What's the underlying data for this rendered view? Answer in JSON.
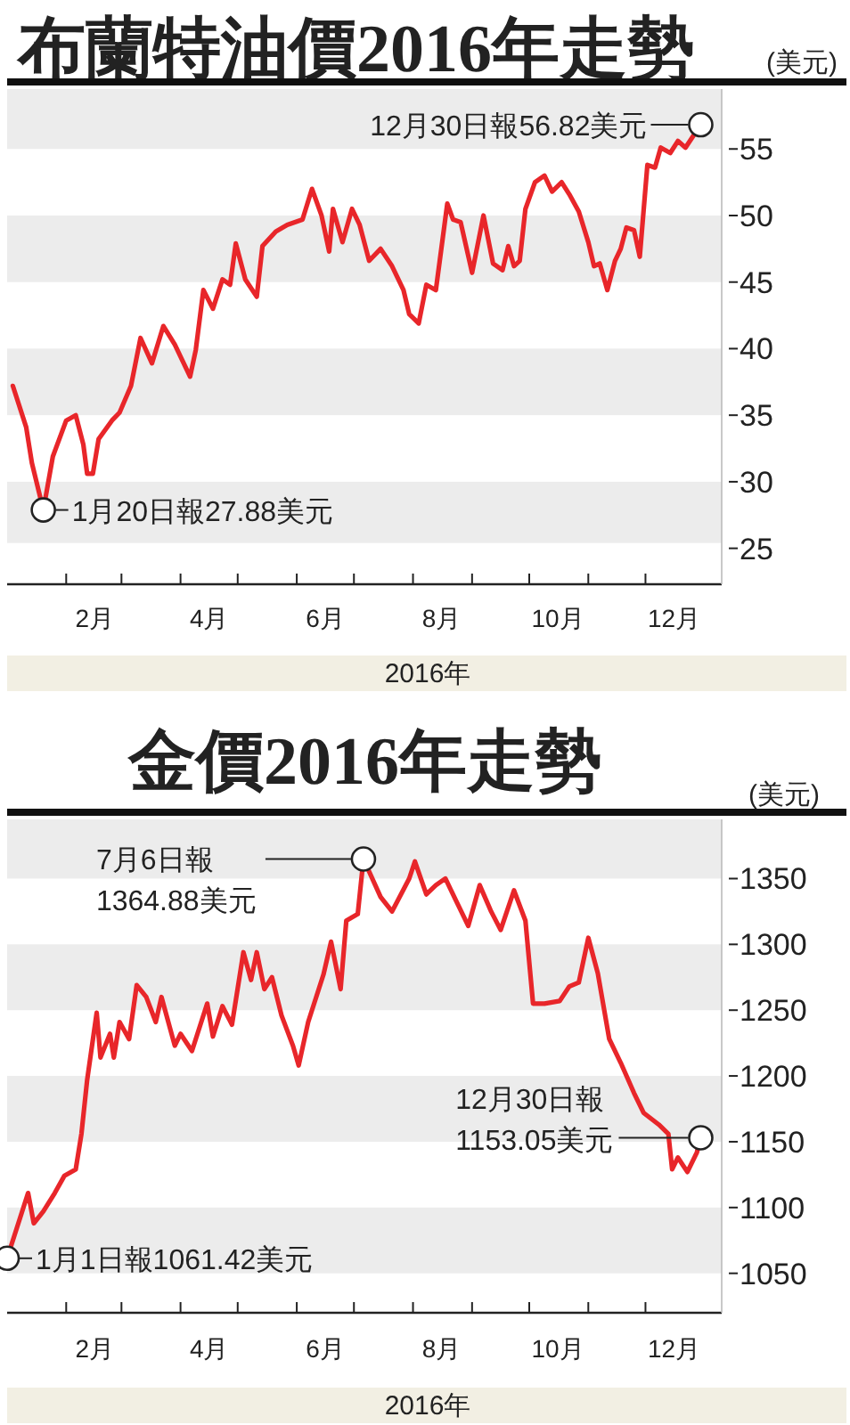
{
  "chart_data": [
    {
      "type": "line",
      "title": "布蘭特油價2016年走勢",
      "ylabel": "(美元)",
      "xlabel": "2016年",
      "color": "#e8262a",
      "marker": "none",
      "line_style": "solid",
      "x": [
        "2016-01-04",
        "2016-01-11",
        "2016-01-14",
        "2016-01-20",
        "2016-01-25",
        "2016-02-01",
        "2016-02-06",
        "2016-02-10",
        "2016-02-12",
        "2016-02-15",
        "2016-02-18",
        "2016-02-25",
        "2016-02-29",
        "2016-03-06",
        "2016-03-11",
        "2016-03-17",
        "2016-03-23",
        "2016-03-29",
        "2016-04-06",
        "2016-04-09",
        "2016-04-13",
        "2016-04-18",
        "2016-04-23",
        "2016-04-27",
        "2016-04-30",
        "2016-05-05",
        "2016-05-11",
        "2016-05-14",
        "2016-05-21",
        "2016-05-27",
        "2016-06-04",
        "2016-06-09",
        "2016-06-14",
        "2016-06-18",
        "2016-06-20",
        "2016-06-25",
        "2016-06-30",
        "2016-07-04",
        "2016-07-09",
        "2016-07-15",
        "2016-07-21",
        "2016-07-27",
        "2016-07-30",
        "2016-08-04",
        "2016-08-08",
        "2016-08-13",
        "2016-08-19",
        "2016-08-22",
        "2016-08-26",
        "2016-09-01",
        "2016-09-07",
        "2016-09-12",
        "2016-09-17",
        "2016-09-20",
        "2016-09-23",
        "2016-09-26",
        "2016-09-29",
        "2016-10-04",
        "2016-10-09",
        "2016-10-13",
        "2016-10-18",
        "2016-10-22",
        "2016-10-27",
        "2016-11-01",
        "2016-11-04",
        "2016-11-07",
        "2016-11-11",
        "2016-11-15",
        "2016-11-18",
        "2016-11-21",
        "2016-11-25",
        "2016-11-28",
        "2016-12-02",
        "2016-12-06",
        "2016-12-09",
        "2016-12-14",
        "2016-12-18",
        "2016-12-22",
        "2016-12-30"
      ],
      "values": [
        37.2,
        34.1,
        31.4,
        27.88,
        31.9,
        34.6,
        35.0,
        32.8,
        30.6,
        30.6,
        33.2,
        34.6,
        35.2,
        37.2,
        40.8,
        38.9,
        41.7,
        40.3,
        37.9,
        39.9,
        44.4,
        43.0,
        45.2,
        44.8,
        47.9,
        45.2,
        43.9,
        47.7,
        48.8,
        49.3,
        49.7,
        52.0,
        50.0,
        47.3,
        50.5,
        48.0,
        50.5,
        49.3,
        46.6,
        47.5,
        46.2,
        44.4,
        42.6,
        41.9,
        44.8,
        44.4,
        50.9,
        49.7,
        49.5,
        45.7,
        50.0,
        46.4,
        45.9,
        47.7,
        46.2,
        46.6,
        50.5,
        52.5,
        53.0,
        51.8,
        52.5,
        51.6,
        50.3,
        48.0,
        46.2,
        46.4,
        44.4,
        46.6,
        47.5,
        49.1,
        48.9,
        46.9,
        53.8,
        53.6,
        55.1,
        54.7,
        55.6,
        55.1,
        56.82
      ],
      "xlim": [
        "2016-01-01",
        "2017-01-10"
      ],
      "ylim": [
        22.3,
        59.5
      ],
      "yticks": [
        25,
        30,
        35,
        40,
        45,
        50,
        55
      ],
      "xticks": [
        {
          "value": "2016-02-01",
          "label": null
        },
        {
          "value": "2016-02-16",
          "label": "2月"
        },
        {
          "value": "2016-03-01",
          "label": null
        },
        {
          "value": "2016-04-01",
          "label": null
        },
        {
          "value": "2016-04-16",
          "label": "4月"
        },
        {
          "value": "2016-05-01",
          "label": null
        },
        {
          "value": "2016-06-01",
          "label": null
        },
        {
          "value": "2016-06-16",
          "label": "6月"
        },
        {
          "value": "2016-07-01",
          "label": null
        },
        {
          "value": "2016-08-01",
          "label": null
        },
        {
          "value": "2016-08-16",
          "label": "8月"
        },
        {
          "value": "2016-09-01",
          "label": null
        },
        {
          "value": "2016-10-01",
          "label": null
        },
        {
          "value": "2016-10-16",
          "label": "10月"
        },
        {
          "value": "2016-11-01",
          "label": null
        },
        {
          "value": "2016-12-01",
          "label": null
        },
        {
          "value": "2016-12-16",
          "label": "12月"
        }
      ],
      "bands": [
        {
          "axis": "y",
          "from": 25.4,
          "to": 30,
          "color": "#ececec"
        },
        {
          "axis": "y",
          "from": 35,
          "to": 40,
          "color": "#ececec"
        },
        {
          "axis": "y",
          "from": 45,
          "to": 50,
          "color": "#ececec"
        },
        {
          "axis": "y",
          "from": 55,
          "to": 59.5,
          "color": "#ececec"
        }
      ],
      "annotations": [
        {
          "text": "1月20日報27.88美元",
          "x": "2016-01-20",
          "y": 27.88
        },
        {
          "text": "12月30日報56.82美元",
          "x": "2016-12-30",
          "y": 56.82
        }
      ]
    },
    {
      "type": "line",
      "title": "金價2016年走勢",
      "ylabel": "(美元)",
      "xlabel": "2016年",
      "color": "#e8262a",
      "marker": "none",
      "line_style": "solid",
      "x": [
        "2016-01-01",
        "2016-01-12",
        "2016-01-15",
        "2016-01-20",
        "2016-01-26",
        "2016-01-31",
        "2016-02-06",
        "2016-02-09",
        "2016-02-12",
        "2016-02-17",
        "2016-02-19",
        "2016-02-24",
        "2016-02-26",
        "2016-02-29",
        "2016-03-05",
        "2016-03-09",
        "2016-03-14",
        "2016-03-19",
        "2016-03-22",
        "2016-03-29",
        "2016-04-01",
        "2016-04-07",
        "2016-04-15",
        "2016-04-18",
        "2016-04-23",
        "2016-04-28",
        "2016-05-04",
        "2016-05-08",
        "2016-05-11",
        "2016-05-15",
        "2016-05-19",
        "2016-05-24",
        "2016-05-30",
        "2016-06-02",
        "2016-06-07",
        "2016-06-15",
        "2016-06-19",
        "2016-06-24",
        "2016-06-27",
        "2016-07-03",
        "2016-07-06",
        "2016-07-15",
        "2016-07-21",
        "2016-07-30",
        "2016-08-02",
        "2016-08-08",
        "2016-08-13",
        "2016-08-18",
        "2016-08-24",
        "2016-08-30",
        "2016-09-05",
        "2016-09-11",
        "2016-09-16",
        "2016-09-23",
        "2016-09-29",
        "2016-10-03",
        "2016-10-09",
        "2016-10-17",
        "2016-10-22",
        "2016-10-27",
        "2016-11-01",
        "2016-11-06",
        "2016-11-12",
        "2016-11-18",
        "2016-11-25",
        "2016-11-30",
        "2016-12-08",
        "2016-12-13",
        "2016-12-15",
        "2016-12-18",
        "2016-12-23",
        "2016-12-28",
        "2016-12-30"
      ],
      "values": [
        1061.42,
        1111,
        1088,
        1097,
        1111,
        1124,
        1129,
        1156,
        1197,
        1248,
        1214,
        1232,
        1214,
        1241,
        1228,
        1269,
        1260,
        1241,
        1260,
        1223,
        1232,
        1219,
        1255,
        1230,
        1253,
        1239,
        1294,
        1273,
        1294,
        1266,
        1275,
        1246,
        1223,
        1208,
        1241,
        1277,
        1302,
        1266,
        1318,
        1323,
        1364.88,
        1336,
        1325,
        1350,
        1363,
        1338,
        1345,
        1350,
        1332,
        1314,
        1345,
        1325,
        1311,
        1341,
        1318,
        1255,
        1255,
        1257,
        1268,
        1271,
        1305,
        1278,
        1228,
        1210,
        1187,
        1172,
        1163,
        1156,
        1129,
        1138,
        1127,
        1142,
        1153.05
      ],
      "xlim": [
        "2016-01-01",
        "2017-01-10"
      ],
      "ylim": [
        1020,
        1395
      ],
      "yticks": [
        1050,
        1100,
        1150,
        1200,
        1250,
        1300,
        1350
      ],
      "xticks": [
        {
          "value": "2016-02-01",
          "label": null
        },
        {
          "value": "2016-02-16",
          "label": "2月"
        },
        {
          "value": "2016-03-01",
          "label": null
        },
        {
          "value": "2016-04-01",
          "label": null
        },
        {
          "value": "2016-04-16",
          "label": "4月"
        },
        {
          "value": "2016-05-01",
          "label": null
        },
        {
          "value": "2016-06-01",
          "label": null
        },
        {
          "value": "2016-06-16",
          "label": "6月"
        },
        {
          "value": "2016-07-01",
          "label": null
        },
        {
          "value": "2016-08-01",
          "label": null
        },
        {
          "value": "2016-08-16",
          "label": "8月"
        },
        {
          "value": "2016-09-01",
          "label": null
        },
        {
          "value": "2016-10-01",
          "label": null
        },
        {
          "value": "2016-10-16",
          "label": "10月"
        },
        {
          "value": "2016-11-01",
          "label": null
        },
        {
          "value": "2016-12-01",
          "label": null
        },
        {
          "value": "2016-12-16",
          "label": "12月"
        }
      ],
      "bands": [
        {
          "axis": "y",
          "from": 1050,
          "to": 1100,
          "color": "#ececec"
        },
        {
          "axis": "y",
          "from": 1150,
          "to": 1200,
          "color": "#ececec"
        },
        {
          "axis": "y",
          "from": 1250,
          "to": 1300,
          "color": "#ececec"
        },
        {
          "axis": "y",
          "from": 1350,
          "to": 1395,
          "color": "#ececec"
        }
      ],
      "annotations": [
        {
          "text": "7月6日報\n1364.88美元",
          "x": "2016-07-06",
          "y": 1364.88
        },
        {
          "text": "12月30日報\n1153.05美元",
          "x": "2016-12-30",
          "y": 1153.05
        },
        {
          "text": "1月1日報1061.42美元",
          "x": "2016-01-01",
          "y": 1061.42
        }
      ]
    }
  ]
}
